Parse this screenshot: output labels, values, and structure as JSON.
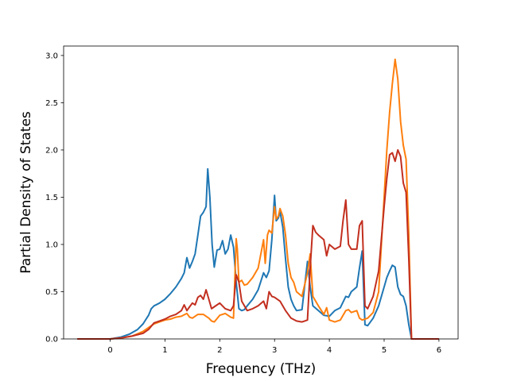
{
  "chart_data": {
    "type": "line",
    "title": "",
    "xlabel": "Frequency (THz)",
    "ylabel": "Partial Density of States",
    "xlim": [
      -0.85,
      6.35
    ],
    "ylim": [
      0.0,
      3.1
    ],
    "xticks": [
      0,
      1,
      2,
      3,
      4,
      5,
      6
    ],
    "xtick_labels": [
      "0",
      "1",
      "2",
      "3",
      "4",
      "5",
      "6"
    ],
    "yticks": [
      0.0,
      0.5,
      1.0,
      1.5,
      2.0,
      2.5,
      3.0
    ],
    "ytick_labels": [
      "0.0",
      "0.5",
      "1.0",
      "1.5",
      "2.0",
      "2.5",
      "3.0"
    ],
    "grid": false,
    "legend": false,
    "series": [
      {
        "color": "#1f77b4",
        "x": [
          -0.6,
          0.0,
          0.2,
          0.35,
          0.5,
          0.6,
          0.7,
          0.75,
          0.8,
          0.9,
          1.0,
          1.1,
          1.2,
          1.3,
          1.35,
          1.4,
          1.45,
          1.5,
          1.55,
          1.6,
          1.65,
          1.7,
          1.75,
          1.78,
          1.82,
          1.86,
          1.9,
          1.95,
          2.0,
          2.05,
          2.1,
          2.15,
          2.2,
          2.25,
          2.3,
          2.35,
          2.4,
          2.45,
          2.5,
          2.6,
          2.7,
          2.8,
          2.85,
          2.9,
          2.95,
          3.0,
          3.03,
          3.07,
          3.1,
          3.15,
          3.2,
          3.25,
          3.3,
          3.35,
          3.4,
          3.5,
          3.6,
          3.65,
          3.7,
          3.8,
          3.9,
          4.0,
          4.1,
          4.2,
          4.3,
          4.35,
          4.4,
          4.5,
          4.55,
          4.6,
          4.65,
          4.7,
          4.8,
          4.9,
          5.0,
          5.05,
          5.1,
          5.15,
          5.2,
          5.25,
          5.3,
          5.35,
          5.4,
          5.45,
          5.5,
          6.0
        ],
        "y": [
          0.0,
          0.0,
          0.02,
          0.05,
          0.1,
          0.16,
          0.25,
          0.32,
          0.35,
          0.38,
          0.42,
          0.48,
          0.55,
          0.64,
          0.7,
          0.86,
          0.75,
          0.82,
          0.9,
          1.1,
          1.3,
          1.34,
          1.4,
          1.8,
          1.5,
          1.0,
          0.76,
          0.94,
          0.95,
          1.04,
          0.9,
          0.95,
          1.1,
          0.97,
          0.6,
          0.32,
          0.3,
          0.31,
          0.35,
          0.42,
          0.52,
          0.7,
          0.65,
          0.72,
          1.05,
          1.52,
          1.25,
          1.28,
          1.35,
          1.18,
          0.85,
          0.55,
          0.42,
          0.35,
          0.3,
          0.31,
          0.82,
          0.55,
          0.35,
          0.3,
          0.25,
          0.24,
          0.3,
          0.33,
          0.45,
          0.44,
          0.5,
          0.55,
          0.75,
          0.93,
          0.15,
          0.14,
          0.22,
          0.35,
          0.55,
          0.65,
          0.72,
          0.78,
          0.76,
          0.55,
          0.47,
          0.45,
          0.35,
          0.15,
          0.0,
          0.0
        ]
      },
      {
        "color": "#ff7f0e",
        "x": [
          -0.6,
          0.0,
          0.2,
          0.4,
          0.6,
          0.7,
          0.8,
          0.9,
          1.0,
          1.1,
          1.2,
          1.3,
          1.4,
          1.45,
          1.5,
          1.6,
          1.7,
          1.75,
          1.8,
          1.85,
          1.9,
          2.0,
          2.1,
          2.2,
          2.25,
          2.3,
          2.32,
          2.35,
          2.4,
          2.45,
          2.5,
          2.6,
          2.7,
          2.8,
          2.83,
          2.87,
          2.9,
          2.95,
          3.0,
          3.03,
          3.07,
          3.1,
          3.15,
          3.2,
          3.25,
          3.3,
          3.35,
          3.4,
          3.5,
          3.6,
          3.65,
          3.7,
          3.8,
          3.9,
          3.95,
          4.0,
          4.1,
          4.2,
          4.3,
          4.35,
          4.4,
          4.5,
          4.55,
          4.6,
          4.7,
          4.8,
          4.9,
          5.0,
          5.05,
          5.1,
          5.15,
          5.2,
          5.25,
          5.3,
          5.35,
          5.4,
          5.45,
          5.5,
          6.0
        ],
        "y": [
          0.0,
          0.0,
          0.01,
          0.03,
          0.08,
          0.12,
          0.16,
          0.18,
          0.2,
          0.21,
          0.23,
          0.24,
          0.27,
          0.23,
          0.22,
          0.26,
          0.26,
          0.24,
          0.22,
          0.19,
          0.18,
          0.25,
          0.27,
          0.23,
          0.22,
          1.06,
          0.95,
          0.6,
          0.62,
          0.57,
          0.58,
          0.65,
          0.75,
          1.05,
          0.8,
          1.1,
          1.15,
          1.12,
          1.4,
          1.27,
          1.3,
          1.38,
          1.3,
          1.1,
          0.8,
          0.65,
          0.6,
          0.5,
          0.45,
          0.7,
          0.9,
          0.45,
          0.35,
          0.26,
          0.33,
          0.2,
          0.18,
          0.2,
          0.3,
          0.31,
          0.28,
          0.3,
          0.22,
          0.2,
          0.22,
          0.28,
          0.5,
          1.5,
          2.0,
          2.4,
          2.7,
          2.96,
          2.75,
          2.3,
          2.05,
          1.9,
          1.1,
          0.0,
          0.0
        ]
      },
      {
        "color": "#c22f1f",
        "x": [
          -0.6,
          0.0,
          0.2,
          0.4,
          0.6,
          0.7,
          0.8,
          0.9,
          1.0,
          1.1,
          1.2,
          1.3,
          1.35,
          1.4,
          1.45,
          1.5,
          1.55,
          1.6,
          1.65,
          1.7,
          1.75,
          1.8,
          1.85,
          1.9,
          2.0,
          2.1,
          2.2,
          2.25,
          2.3,
          2.35,
          2.4,
          2.5,
          2.6,
          2.7,
          2.8,
          2.85,
          2.9,
          2.95,
          3.0,
          3.1,
          3.2,
          3.3,
          3.4,
          3.5,
          3.6,
          3.65,
          3.7,
          3.75,
          3.8,
          3.9,
          3.95,
          4.0,
          4.1,
          4.2,
          4.25,
          4.3,
          4.35,
          4.4,
          4.5,
          4.55,
          4.6,
          4.65,
          4.7,
          4.8,
          4.9,
          5.0,
          5.05,
          5.1,
          5.15,
          5.2,
          5.25,
          5.3,
          5.35,
          5.4,
          5.45,
          5.5,
          6.0
        ],
        "y": [
          0.0,
          0.0,
          0.01,
          0.03,
          0.06,
          0.1,
          0.17,
          0.19,
          0.21,
          0.24,
          0.26,
          0.3,
          0.36,
          0.3,
          0.34,
          0.38,
          0.36,
          0.44,
          0.46,
          0.42,
          0.52,
          0.42,
          0.32,
          0.34,
          0.38,
          0.32,
          0.3,
          0.35,
          0.68,
          0.6,
          0.4,
          0.3,
          0.32,
          0.35,
          0.4,
          0.32,
          0.5,
          0.45,
          0.44,
          0.4,
          0.3,
          0.22,
          0.19,
          0.18,
          0.2,
          0.75,
          1.2,
          1.13,
          1.1,
          1.05,
          0.88,
          1.0,
          0.95,
          0.98,
          1.25,
          1.47,
          1.0,
          0.95,
          0.95,
          1.2,
          1.25,
          0.35,
          0.32,
          0.45,
          0.72,
          1.4,
          1.7,
          1.95,
          1.97,
          1.88,
          2.0,
          1.93,
          1.65,
          1.55,
          0.85,
          0.0,
          0.0
        ]
      }
    ]
  }
}
